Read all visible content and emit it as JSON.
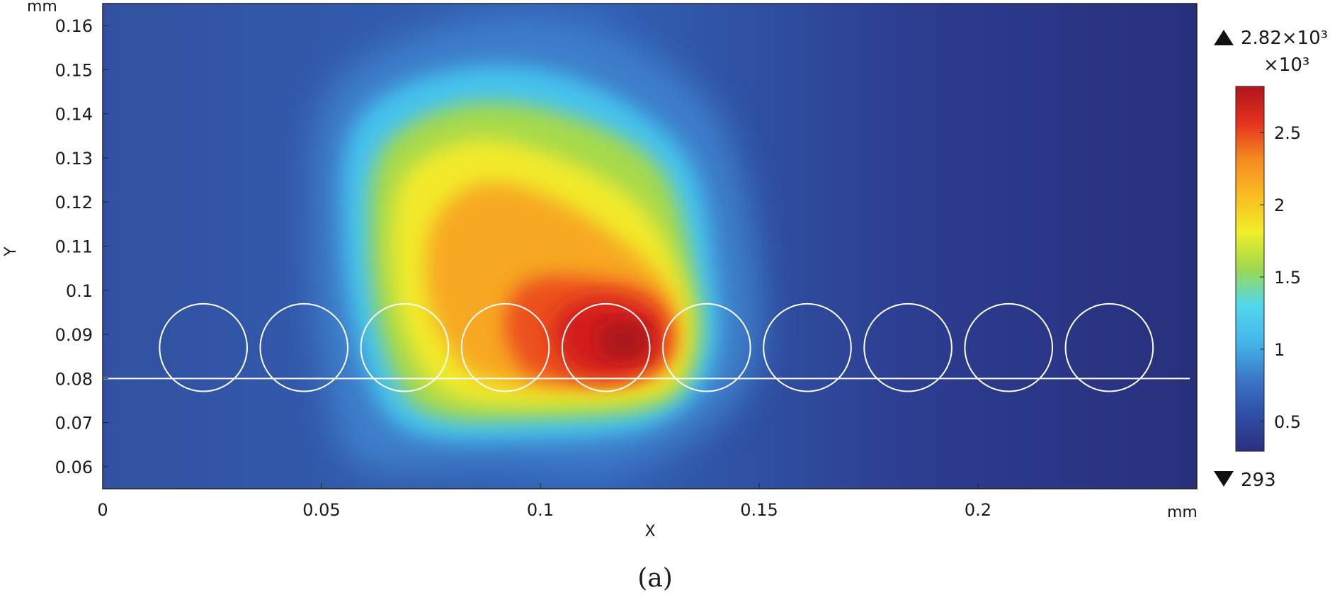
{
  "chart_data": {
    "type": "heatmap",
    "title": "",
    "xlabel": "X",
    "ylabel": "Y",
    "x_unit": "mm",
    "y_unit": "mm",
    "xlim": [
      0,
      0.25
    ],
    "ylim": [
      0.055,
      0.165
    ],
    "x_ticks": [
      "0",
      "0.05",
      "0.1",
      "0.15",
      "0.2"
    ],
    "y_ticks": [
      "0.06",
      "0.07",
      "0.08",
      "0.09",
      "0.1",
      "0.11",
      "0.12",
      "0.13",
      "0.14",
      "0.15",
      "0.16"
    ],
    "colorbar": {
      "max_label": "2.82×10³",
      "multiplier_label": "×10³",
      "min_label": "293",
      "range": [
        0.293,
        2.82
      ],
      "ticks": [
        "2.5",
        "2",
        "1.5",
        "1",
        "0.5"
      ],
      "colormap": [
        "#2b2f7f",
        "#2f4ea6",
        "#3b78c6",
        "#45b7ea",
        "#50d7ee",
        "#9ed84e",
        "#f0ee2a",
        "#f9bd21",
        "#f58a21",
        "#e4321e",
        "#b0141a"
      ]
    },
    "hot_spot": {
      "peak_x": 0.12,
      "peak_y": 0.088,
      "peak_value": 2.82,
      "background_value": 0.293
    },
    "substrate_line_y": 0.08,
    "particles": {
      "count": 10,
      "radius": 0.01,
      "center_y": 0.087,
      "centers_x": [
        0.023,
        0.046,
        0.069,
        0.092,
        0.115,
        0.138,
        0.161,
        0.184,
        0.207,
        0.23
      ]
    },
    "colors": {
      "background": "#2b3585",
      "outline": "#ffffff"
    }
  },
  "caption": "(a)"
}
